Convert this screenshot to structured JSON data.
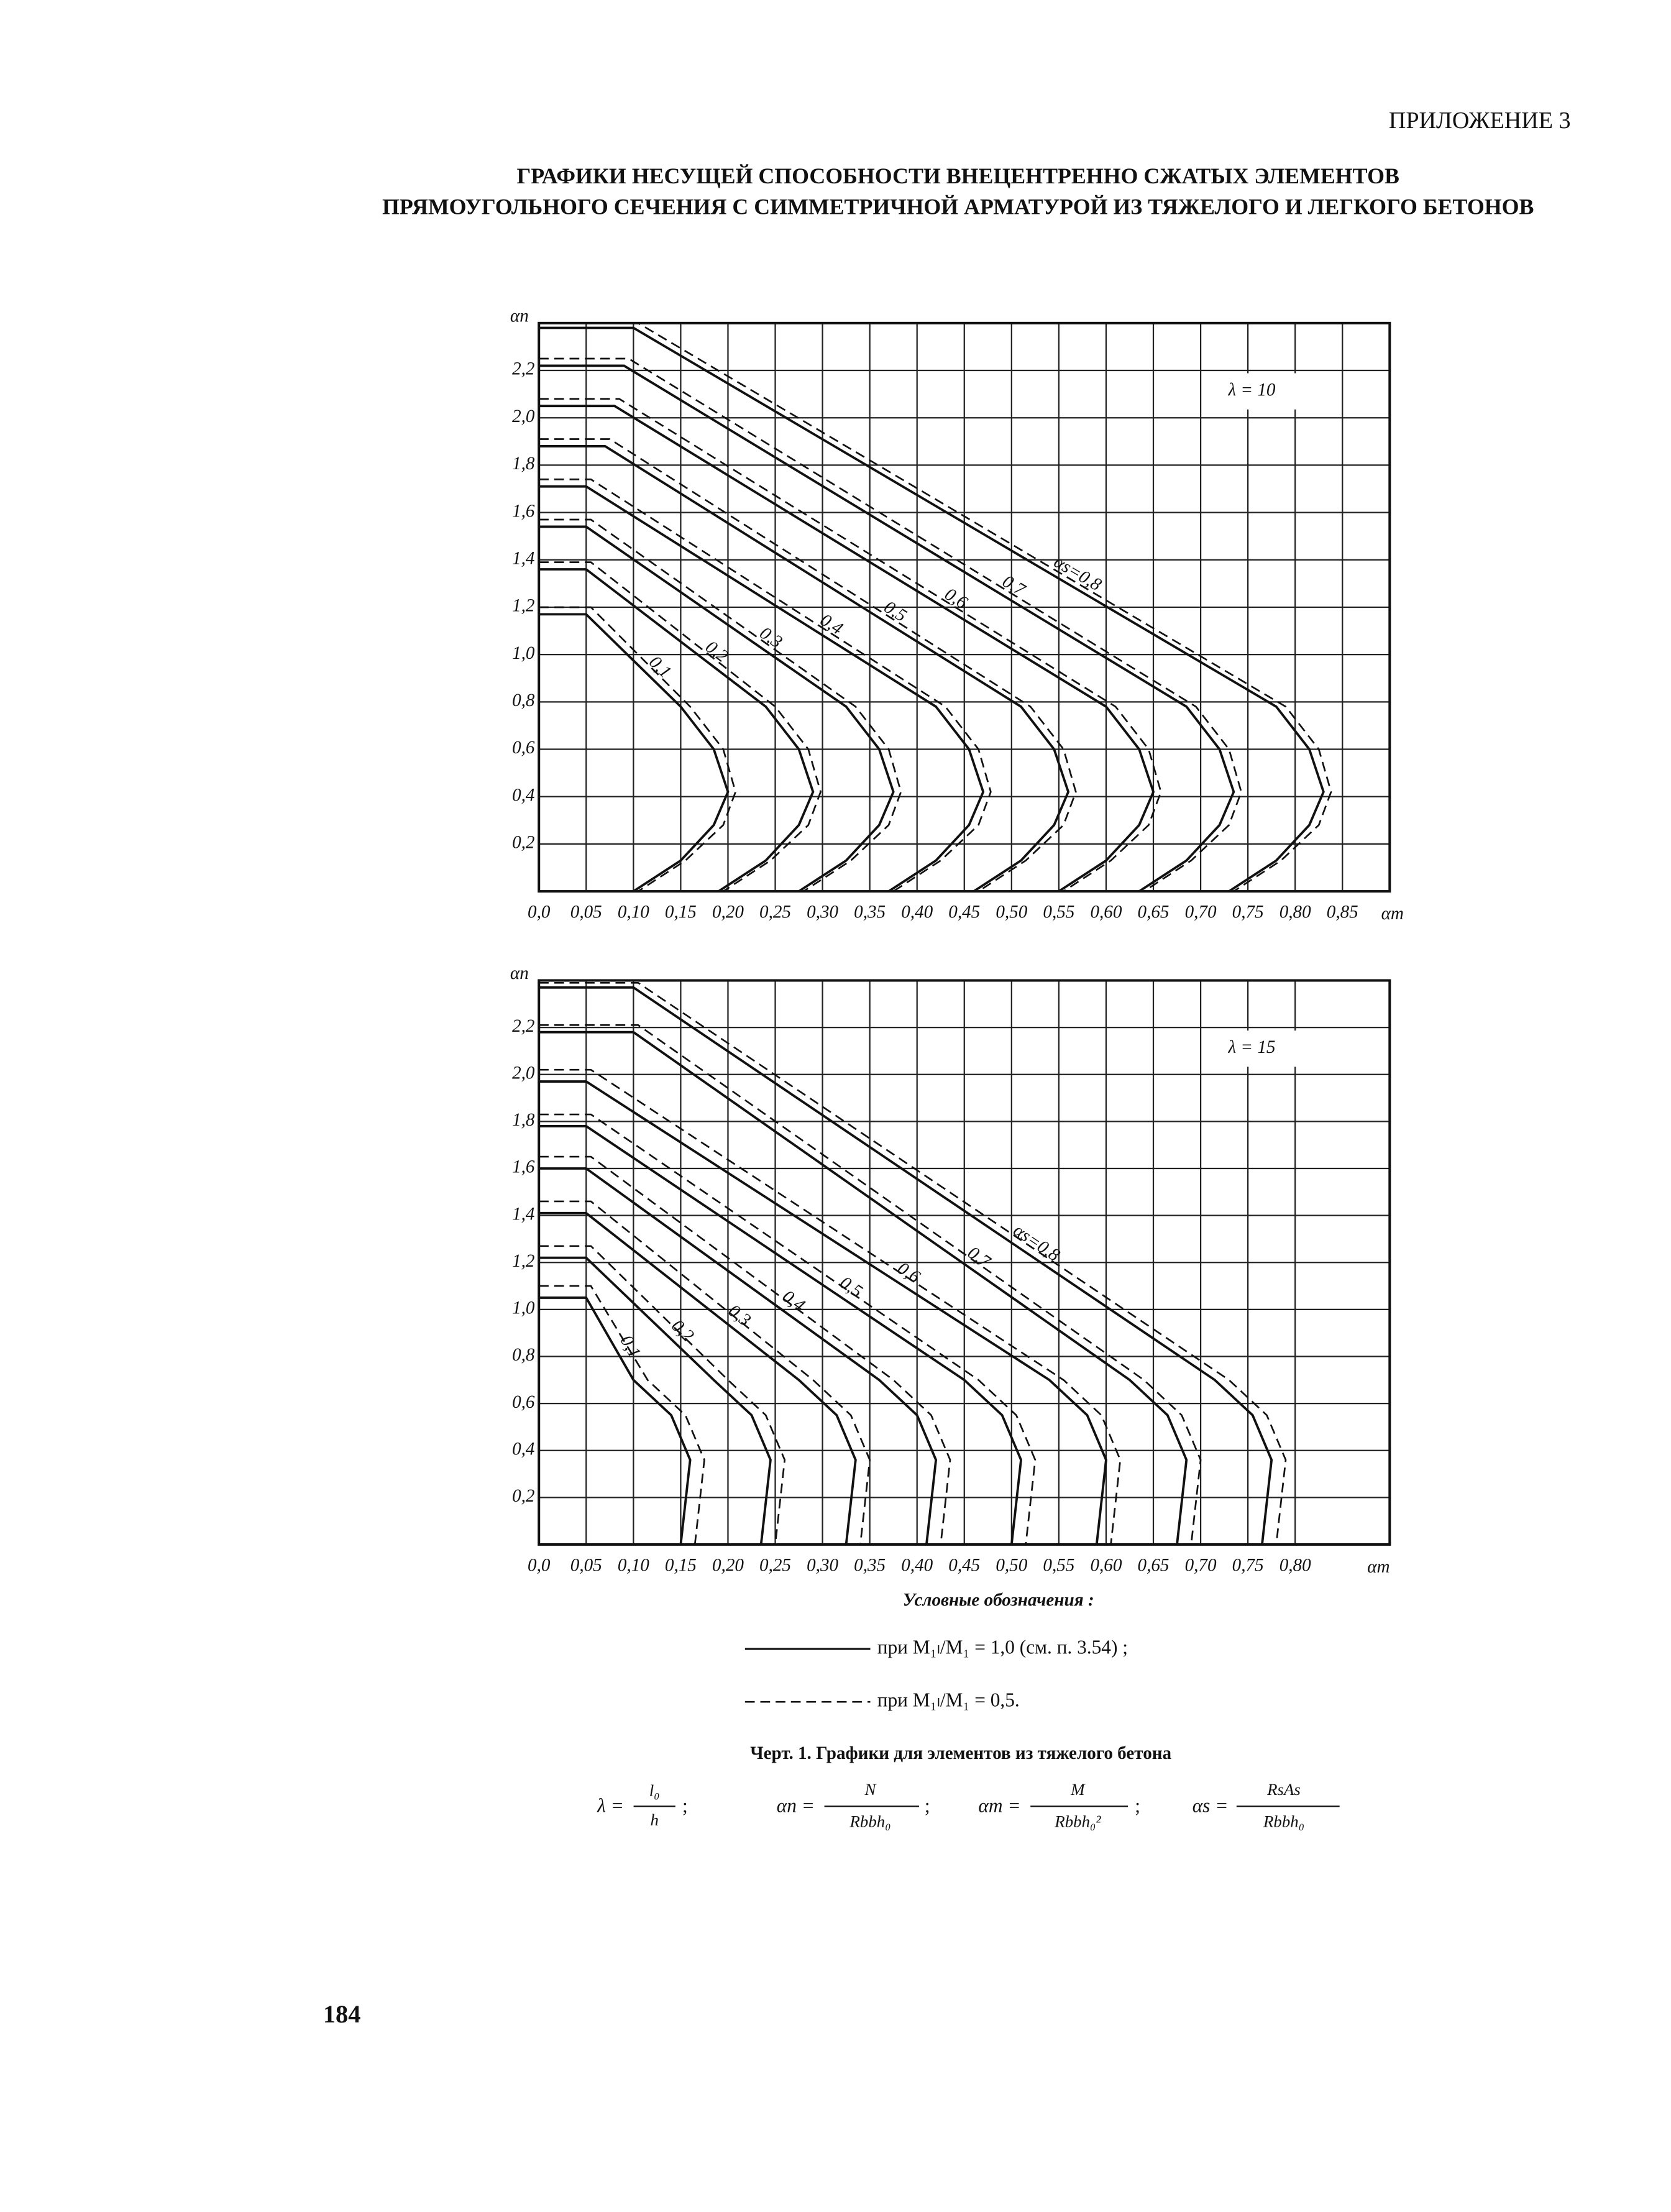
{
  "header": {
    "appendix": "ПРИЛОЖЕНИЕ 3",
    "title": [
      "ГРАФИКИ НЕСУЩЕЙ СПОСОБНОСТИ ВНЕЦЕНТРЕННО СЖАТЫХ ЭЛЕМЕНТОВ",
      "ПРЯМОУГОЛЬНОГО СЕЧЕНИЯ С СИММЕТРИЧНОЙ АРМАТУРОЙ ИЗ ТЯЖЕЛОГО И ЛЕГКОГО БЕТОНОВ"
    ]
  },
  "chart_data": [
    {
      "type": "line",
      "annotation": "λ = 10",
      "ylabel": "αn",
      "xlabel": "αm",
      "xlim": [
        0,
        0.9
      ],
      "ylim": [
        0,
        2.4
      ],
      "grid": true,
      "xticks": [
        {
          "value": 0,
          "label": "0,0"
        },
        {
          "value": 0.05,
          "label": "0,05"
        },
        {
          "value": 0.1,
          "label": "0,10"
        },
        {
          "value": 0.15,
          "label": "0,15"
        },
        {
          "value": 0.2,
          "label": "0,20"
        },
        {
          "value": 0.25,
          "label": "0,25"
        },
        {
          "value": 0.3,
          "label": "0,30"
        },
        {
          "value": 0.35,
          "label": "0,35"
        },
        {
          "value": 0.4,
          "label": "0,40"
        },
        {
          "value": 0.45,
          "label": "0,45"
        },
        {
          "value": 0.5,
          "label": "0,50"
        },
        {
          "value": 0.55,
          "label": "0,55"
        },
        {
          "value": 0.6,
          "label": "0,60"
        },
        {
          "value": 0.65,
          "label": "0,65"
        },
        {
          "value": 0.7,
          "label": "0,70"
        },
        {
          "value": 0.75,
          "label": "0,75"
        },
        {
          "value": 0.8,
          "label": "0,80"
        },
        {
          "value": 0.85,
          "label": "0,85"
        }
      ],
      "yticks": [
        {
          "value": 0.2,
          "label": "0,2"
        },
        {
          "value": 0.4,
          "label": "0,4"
        },
        {
          "value": 0.6,
          "label": "0,6"
        },
        {
          "value": 0.8,
          "label": "0,8"
        },
        {
          "value": 1.0,
          "label": "1,0"
        },
        {
          "value": 1.2,
          "label": "1,2"
        },
        {
          "value": 1.4,
          "label": "1,4"
        },
        {
          "value": 1.6,
          "label": "1,6"
        },
        {
          "value": 1.8,
          "label": "1,8"
        },
        {
          "value": 2.0,
          "label": "2,0"
        },
        {
          "value": 2.2,
          "label": "2,2"
        }
      ],
      "series": [
        {
          "name": "0,1",
          "line_style": "solid",
          "color": "#111",
          "x": [
            0,
            0.05,
            0.15,
            0.185,
            0.2,
            0.185,
            0.15,
            0.1
          ],
          "values": [
            1.17,
            1.17,
            0.78,
            0.6,
            0.42,
            0.28,
            0.13,
            0
          ]
        },
        {
          "line_style": "dashed",
          "color": "#111",
          "x": [
            0,
            0.055,
            0.16,
            0.195,
            0.208,
            0.195,
            0.155,
            0.105
          ],
          "values": [
            1.2,
            1.2,
            0.78,
            0.6,
            0.42,
            0.28,
            0.13,
            0
          ]
        },
        {
          "name": "0,2",
          "line_style": "solid",
          "color": "#111",
          "x": [
            0,
            0.05,
            0.24,
            0.275,
            0.29,
            0.275,
            0.24,
            0.19
          ],
          "values": [
            1.36,
            1.36,
            0.78,
            0.6,
            0.42,
            0.28,
            0.13,
            0
          ]
        },
        {
          "line_style": "dashed",
          "color": "#111",
          "x": [
            0,
            0.055,
            0.25,
            0.285,
            0.298,
            0.285,
            0.245,
            0.195
          ],
          "values": [
            1.39,
            1.39,
            0.78,
            0.6,
            0.42,
            0.28,
            0.13,
            0
          ]
        },
        {
          "name": "0,3",
          "line_style": "solid",
          "color": "#111",
          "x": [
            0,
            0.05,
            0.325,
            0.36,
            0.375,
            0.36,
            0.325,
            0.275
          ],
          "values": [
            1.54,
            1.54,
            0.78,
            0.6,
            0.42,
            0.28,
            0.13,
            0
          ]
        },
        {
          "line_style": "dashed",
          "color": "#111",
          "x": [
            0,
            0.055,
            0.335,
            0.37,
            0.383,
            0.37,
            0.33,
            0.28
          ],
          "values": [
            1.57,
            1.57,
            0.78,
            0.6,
            0.42,
            0.28,
            0.13,
            0
          ]
        },
        {
          "name": "0,4",
          "line_style": "solid",
          "color": "#111",
          "x": [
            0,
            0.05,
            0.42,
            0.455,
            0.47,
            0.455,
            0.42,
            0.37
          ],
          "values": [
            1.71,
            1.71,
            0.78,
            0.6,
            0.42,
            0.28,
            0.13,
            0
          ]
        },
        {
          "line_style": "dashed",
          "color": "#111",
          "x": [
            0,
            0.055,
            0.43,
            0.465,
            0.478,
            0.465,
            0.425,
            0.375
          ],
          "values": [
            1.74,
            1.74,
            0.78,
            0.6,
            0.42,
            0.28,
            0.13,
            0
          ]
        },
        {
          "name": "0,5",
          "line_style": "solid",
          "color": "#111",
          "x": [
            0,
            0.07,
            0.51,
            0.545,
            0.56,
            0.545,
            0.51,
            0.46
          ],
          "values": [
            1.88,
            1.88,
            0.78,
            0.6,
            0.42,
            0.28,
            0.13,
            0
          ]
        },
        {
          "line_style": "dashed",
          "color": "#111",
          "x": [
            0,
            0.075,
            0.52,
            0.555,
            0.568,
            0.555,
            0.515,
            0.465
          ],
          "values": [
            1.91,
            1.91,
            0.78,
            0.6,
            0.42,
            0.28,
            0.13,
            0
          ]
        },
        {
          "name": "0,6",
          "line_style": "solid",
          "color": "#111",
          "x": [
            0,
            0.08,
            0.6,
            0.635,
            0.65,
            0.635,
            0.6,
            0.55
          ],
          "values": [
            2.05,
            2.05,
            0.78,
            0.6,
            0.42,
            0.28,
            0.13,
            0
          ]
        },
        {
          "line_style": "dashed",
          "color": "#111",
          "x": [
            0,
            0.085,
            0.61,
            0.645,
            0.658,
            0.645,
            0.605,
            0.555
          ],
          "values": [
            2.08,
            2.08,
            0.78,
            0.6,
            0.42,
            0.28,
            0.13,
            0
          ]
        },
        {
          "name": "0,7",
          "line_style": "solid",
          "color": "#111",
          "x": [
            0,
            0.09,
            0.685,
            0.72,
            0.735,
            0.72,
            0.685,
            0.635
          ],
          "values": [
            2.22,
            2.22,
            0.78,
            0.6,
            0.42,
            0.28,
            0.13,
            0
          ]
        },
        {
          "line_style": "dashed",
          "color": "#111",
          "x": [
            0,
            0.095,
            0.695,
            0.73,
            0.743,
            0.73,
            0.69,
            0.64
          ],
          "values": [
            2.25,
            2.25,
            0.78,
            0.6,
            0.42,
            0.28,
            0.13,
            0
          ]
        },
        {
          "name": "αs=0,8",
          "line_style": "solid",
          "color": "#111",
          "x": [
            0,
            0.1,
            0.78,
            0.815,
            0.83,
            0.815,
            0.78,
            0.73
          ],
          "values": [
            2.38,
            2.38,
            0.78,
            0.6,
            0.42,
            0.28,
            0.13,
            0
          ]
        },
        {
          "line_style": "dashed",
          "color": "#111",
          "x": [
            0,
            0.105,
            0.79,
            0.825,
            0.838,
            0.825,
            0.785,
            0.735
          ],
          "values": [
            2.4,
            2.4,
            0.78,
            0.6,
            0.42,
            0.28,
            0.13,
            0
          ]
        }
      ]
    },
    {
      "type": "line",
      "annotation": "λ = 15",
      "ylabel": "αn",
      "xlabel": "αm",
      "xlim": [
        0,
        0.9
      ],
      "ylim": [
        0,
        2.4
      ],
      "grid": true,
      "xticks": [
        {
          "value": 0,
          "label": "0,0"
        },
        {
          "value": 0.05,
          "label": "0,05"
        },
        {
          "value": 0.1,
          "label": "0,10"
        },
        {
          "value": 0.15,
          "label": "0,15"
        },
        {
          "value": 0.2,
          "label": "0,20"
        },
        {
          "value": 0.25,
          "label": "0,25"
        },
        {
          "value": 0.3,
          "label": "0,30"
        },
        {
          "value": 0.35,
          "label": "0,35"
        },
        {
          "value": 0.4,
          "label": "0,40"
        },
        {
          "value": 0.45,
          "label": "0,45"
        },
        {
          "value": 0.5,
          "label": "0,50"
        },
        {
          "value": 0.55,
          "label": "0,55"
        },
        {
          "value": 0.6,
          "label": "0,60"
        },
        {
          "value": 0.65,
          "label": "0,65"
        },
        {
          "value": 0.7,
          "label": "0,70"
        },
        {
          "value": 0.75,
          "label": "0,75"
        },
        {
          "value": 0.8,
          "label": "0,80"
        }
      ],
      "yticks": [
        {
          "value": 0.2,
          "label": "0,2"
        },
        {
          "value": 0.4,
          "label": "0,4"
        },
        {
          "value": 0.6,
          "label": "0,6"
        },
        {
          "value": 0.8,
          "label": "0,8"
        },
        {
          "value": 1.0,
          "label": "1,0"
        },
        {
          "value": 1.2,
          "label": "1,2"
        },
        {
          "value": 1.4,
          "label": "1,4"
        },
        {
          "value": 1.6,
          "label": "1,6"
        },
        {
          "value": 1.8,
          "label": "1,8"
        },
        {
          "value": 2.0,
          "label": "2,0"
        },
        {
          "value": 2.2,
          "label": "2,2"
        }
      ],
      "series": [
        {
          "name": "0,1",
          "line_style": "solid",
          "color": "#111",
          "x": [
            0,
            0.05,
            0.1,
            0.14,
            0.16,
            0.155,
            0.15
          ],
          "values": [
            1.05,
            1.05,
            0.7,
            0.55,
            0.36,
            0.18,
            0
          ]
        },
        {
          "line_style": "dashed",
          "color": "#111",
          "x": [
            0,
            0.055,
            0.115,
            0.155,
            0.175,
            0.17,
            0.165
          ],
          "values": [
            1.1,
            1.1,
            0.7,
            0.55,
            0.36,
            0.18,
            0
          ]
        },
        {
          "name": "0,2",
          "line_style": "solid",
          "color": "#111",
          "x": [
            0,
            0.05,
            0.185,
            0.225,
            0.245,
            0.24,
            0.235
          ],
          "values": [
            1.22,
            1.22,
            0.7,
            0.55,
            0.36,
            0.18,
            0
          ]
        },
        {
          "line_style": "dashed",
          "color": "#111",
          "x": [
            0,
            0.055,
            0.2,
            0.24,
            0.26,
            0.255,
            0.25
          ],
          "values": [
            1.27,
            1.27,
            0.7,
            0.55,
            0.36,
            0.18,
            0
          ]
        },
        {
          "name": "0,3",
          "line_style": "solid",
          "color": "#111",
          "x": [
            0,
            0.05,
            0.275,
            0.315,
            0.335,
            0.33,
            0.325
          ],
          "values": [
            1.41,
            1.41,
            0.7,
            0.55,
            0.36,
            0.18,
            0
          ]
        },
        {
          "line_style": "dashed",
          "color": "#111",
          "x": [
            0,
            0.055,
            0.29,
            0.33,
            0.35,
            0.345,
            0.34
          ],
          "values": [
            1.46,
            1.46,
            0.7,
            0.55,
            0.36,
            0.18,
            0
          ]
        },
        {
          "name": "0,4",
          "line_style": "solid",
          "color": "#111",
          "x": [
            0,
            0.05,
            0.36,
            0.4,
            0.42,
            0.415,
            0.41
          ],
          "values": [
            1.6,
            1.6,
            0.7,
            0.55,
            0.36,
            0.18,
            0
          ]
        },
        {
          "line_style": "dashed",
          "color": "#111",
          "x": [
            0,
            0.055,
            0.375,
            0.415,
            0.435,
            0.43,
            0.425
          ],
          "values": [
            1.65,
            1.65,
            0.7,
            0.55,
            0.36,
            0.18,
            0
          ]
        },
        {
          "name": "0,5",
          "line_style": "solid",
          "color": "#111",
          "x": [
            0,
            0.05,
            0.45,
            0.49,
            0.51,
            0.505,
            0.5
          ],
          "values": [
            1.78,
            1.78,
            0.7,
            0.55,
            0.36,
            0.18,
            0
          ]
        },
        {
          "line_style": "dashed",
          "color": "#111",
          "x": [
            0,
            0.055,
            0.465,
            0.505,
            0.525,
            0.52,
            0.515
          ],
          "values": [
            1.83,
            1.83,
            0.7,
            0.55,
            0.36,
            0.18,
            0
          ]
        },
        {
          "name": "0,6",
          "line_style": "solid",
          "color": "#111",
          "x": [
            0,
            0.05,
            0.54,
            0.58,
            0.6,
            0.595,
            0.59
          ],
          "values": [
            1.97,
            1.97,
            0.7,
            0.55,
            0.36,
            0.18,
            0
          ]
        },
        {
          "line_style": "dashed",
          "color": "#111",
          "x": [
            0,
            0.055,
            0.555,
            0.595,
            0.615,
            0.61,
            0.605
          ],
          "values": [
            2.02,
            2.02,
            0.7,
            0.55,
            0.36,
            0.18,
            0
          ]
        },
        {
          "name": "0,7",
          "line_style": "solid",
          "color": "#111",
          "x": [
            0,
            0.1,
            0.625,
            0.665,
            0.685,
            0.68,
            0.675
          ],
          "values": [
            2.18,
            2.18,
            0.7,
            0.55,
            0.36,
            0.18,
            0
          ]
        },
        {
          "line_style": "dashed",
          "color": "#111",
          "x": [
            0,
            0.105,
            0.64,
            0.68,
            0.7,
            0.695,
            0.69
          ],
          "values": [
            2.21,
            2.21,
            0.7,
            0.55,
            0.36,
            0.18,
            0
          ]
        },
        {
          "name": "αs=0,8",
          "line_style": "solid",
          "color": "#111",
          "x": [
            0,
            0.1,
            0.715,
            0.755,
            0.775,
            0.77,
            0.765
          ],
          "values": [
            2.37,
            2.37,
            0.7,
            0.55,
            0.36,
            0.18,
            0
          ]
        },
        {
          "line_style": "dashed",
          "color": "#111",
          "x": [
            0,
            0.105,
            0.73,
            0.77,
            0.79,
            0.785,
            0.78
          ],
          "values": [
            2.39,
            2.39,
            0.7,
            0.55,
            0.36,
            0.18,
            0
          ]
        }
      ]
    }
  ],
  "legend": {
    "title": "Условные обозначения :",
    "items": [
      {
        "line_style": "solid",
        "text": "при M₁ₗ/M₁ = 1,0 (см. п. 3.54) ;"
      },
      {
        "line_style": "dashed",
        "text": "при M₁ₗ/M₁ = 0,5."
      }
    ]
  },
  "caption": "Черт. 1. Графики для элементов из тяжелого бетона",
  "formulas": [
    {
      "lhs": "λ =",
      "num": "l₀",
      "den": "h",
      "sep": ";"
    },
    {
      "lhs": "αn =",
      "num": "N",
      "den": "Rbbh₀",
      "sep": ";"
    },
    {
      "lhs": "αm =",
      "num": "M",
      "den": "Rbbh₀²",
      "sep": ";"
    },
    {
      "lhs": "αs =",
      "num": "RsAs",
      "den": "Rbbh₀"
    }
  ],
  "page_number": "184"
}
